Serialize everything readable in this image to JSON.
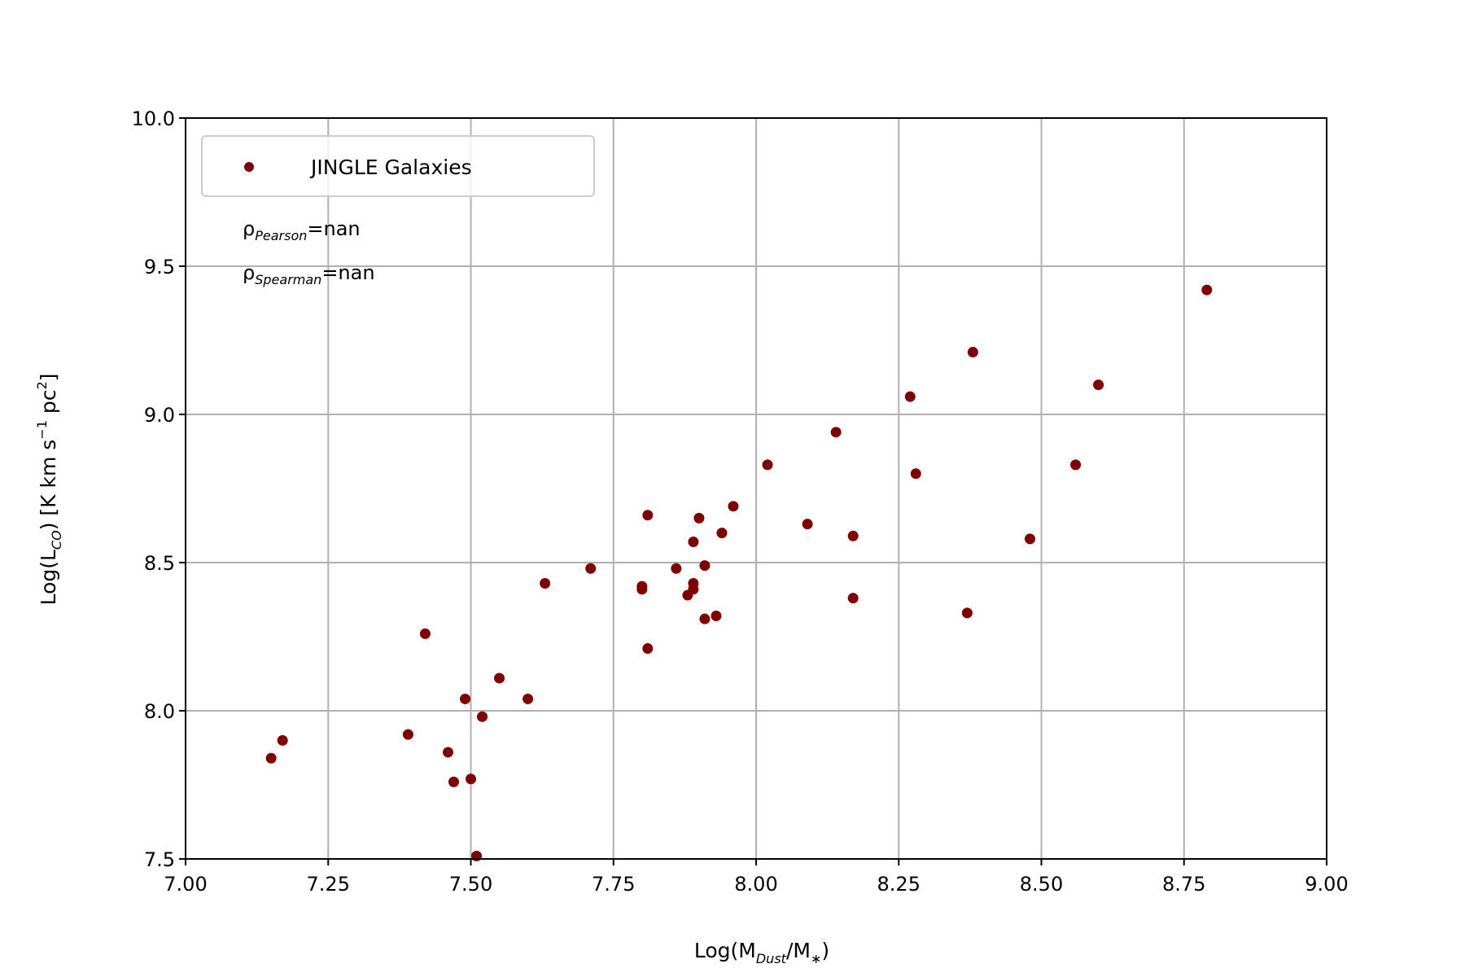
{
  "chart_data": {
    "type": "scatter",
    "title": "",
    "xlim": [
      7.0,
      9.0
    ],
    "ylim": [
      7.5,
      10.0
    ],
    "x_ticks": [
      "7.00",
      "7.25",
      "7.50",
      "7.75",
      "8.00",
      "8.25",
      "8.50",
      "8.75",
      "9.00"
    ],
    "y_ticks": [
      "7.5",
      "8.0",
      "8.5",
      "9.0",
      "9.5",
      "10.0"
    ],
    "xlabel": {
      "prefix": "Log(M",
      "sub": "Dust",
      "middle": "/M",
      "sub2": "∗",
      "suffix": ")"
    },
    "ylabel": {
      "prefix": "Log(L",
      "sub": "CO",
      "middle": ") [K km s",
      "sup": "−1",
      "middle2": " pc",
      "sup2": "2",
      "suffix": "]"
    },
    "grid": true,
    "legend": {
      "position": "upper-left",
      "label": "JINGLE Galaxies"
    },
    "annotations": {
      "pearson": {
        "symbol": "ρ",
        "sub": "Pearson",
        "value": "=nan"
      },
      "spearman": {
        "symbol": "ρ",
        "sub": "Spearman",
        "value": "=nan"
      }
    },
    "color": "#7f0000",
    "series": [
      {
        "name": "JINGLE Galaxies",
        "points": [
          [
            7.15,
            7.84
          ],
          [
            7.17,
            7.9
          ],
          [
            7.39,
            7.92
          ],
          [
            7.42,
            8.26
          ],
          [
            7.46,
            7.86
          ],
          [
            7.47,
            7.76
          ],
          [
            7.49,
            8.04
          ],
          [
            7.5,
            7.77
          ],
          [
            7.51,
            7.51
          ],
          [
            7.52,
            7.98
          ],
          [
            7.55,
            8.11
          ],
          [
            7.6,
            8.04
          ],
          [
            7.63,
            8.43
          ],
          [
            7.71,
            8.48
          ],
          [
            7.8,
            8.42
          ],
          [
            7.8,
            8.41
          ],
          [
            7.81,
            8.66
          ],
          [
            7.81,
            8.21
          ],
          [
            7.86,
            8.48
          ],
          [
            7.89,
            8.57
          ],
          [
            7.89,
            8.43
          ],
          [
            7.88,
            8.39
          ],
          [
            7.89,
            8.41
          ],
          [
            7.9,
            8.65
          ],
          [
            7.91,
            8.49
          ],
          [
            7.91,
            8.31
          ],
          [
            7.93,
            8.32
          ],
          [
            7.94,
            8.6
          ],
          [
            7.96,
            8.69
          ],
          [
            8.02,
            8.83
          ],
          [
            8.09,
            8.63
          ],
          [
            8.14,
            8.94
          ],
          [
            8.17,
            8.38
          ],
          [
            8.17,
            8.59
          ],
          [
            8.27,
            9.06
          ],
          [
            8.28,
            8.8
          ],
          [
            8.37,
            8.33
          ],
          [
            8.38,
            9.21
          ],
          [
            8.48,
            8.58
          ],
          [
            8.56,
            8.83
          ],
          [
            8.6,
            9.1
          ],
          [
            8.79,
            9.42
          ]
        ]
      }
    ]
  }
}
